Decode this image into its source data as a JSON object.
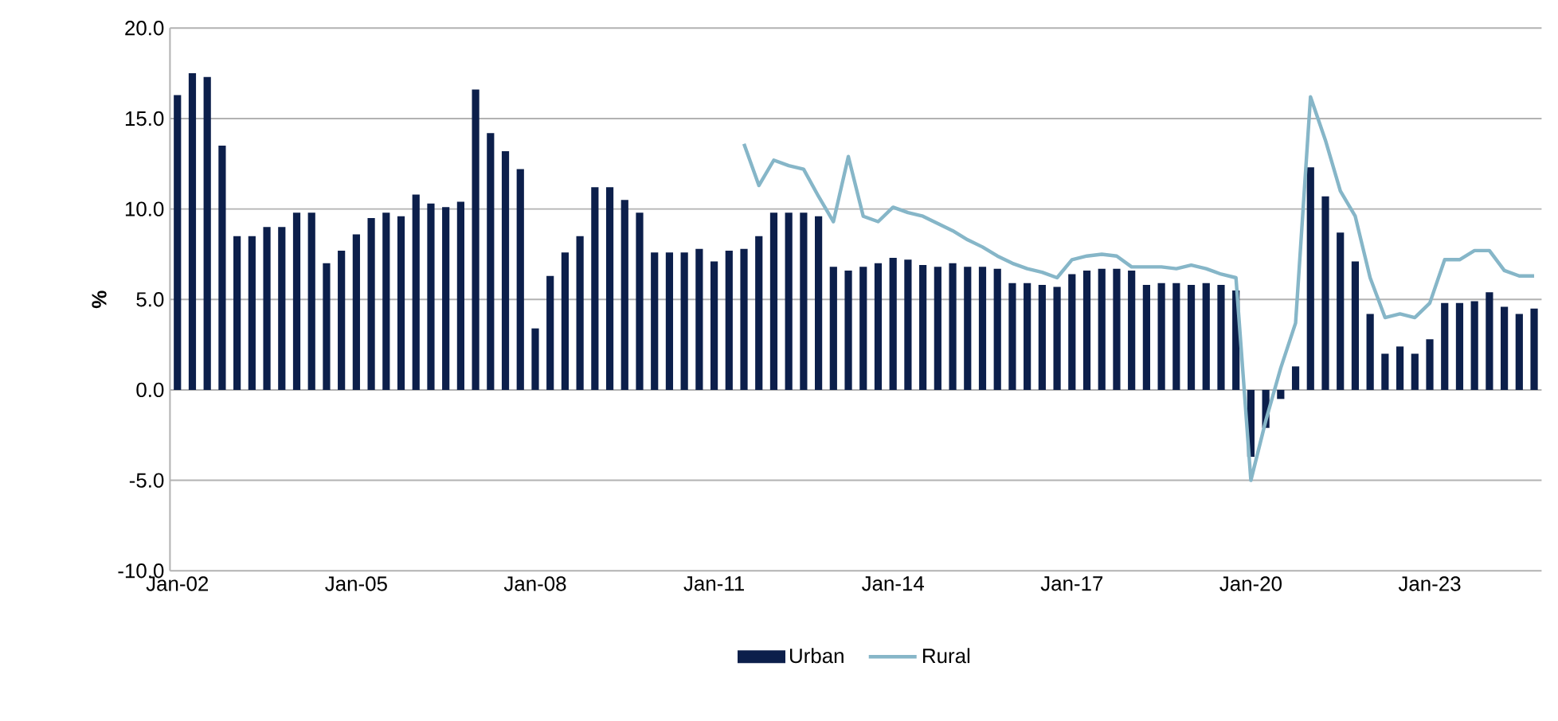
{
  "chart_data": {
    "type": "bar",
    "ylabel": "%",
    "categories": [
      "Jan-02",
      null,
      null,
      null,
      null,
      null,
      null,
      null,
      null,
      null,
      null,
      null,
      "Jan-05",
      null,
      null,
      null,
      null,
      null,
      null,
      null,
      null,
      null,
      null,
      null,
      "Jan-08",
      null,
      null,
      null,
      null,
      null,
      null,
      null,
      null,
      null,
      null,
      null,
      "Jan-11",
      null,
      null,
      null,
      null,
      null,
      null,
      null,
      null,
      null,
      null,
      null,
      "Jan-14",
      null,
      null,
      null,
      null,
      null,
      null,
      null,
      null,
      null,
      null,
      null,
      "Jan-17",
      null,
      null,
      null,
      null,
      null,
      null,
      null,
      null,
      null,
      null,
      null,
      "Jan-20",
      null,
      null,
      null,
      null,
      null,
      null,
      null,
      null,
      null,
      null,
      null,
      "Jan-23",
      null,
      null,
      null,
      null,
      null,
      null,
      null
    ],
    "series": [
      {
        "name": "Urban",
        "type": "bar",
        "color": "#0c1f4b",
        "values": [
          16.3,
          17.5,
          17.3,
          13.5,
          8.5,
          8.5,
          9.0,
          9.0,
          9.8,
          9.8,
          7.0,
          7.7,
          8.6,
          9.5,
          9.8,
          9.6,
          10.8,
          10.3,
          10.1,
          10.4,
          16.6,
          14.2,
          13.2,
          12.2,
          3.4,
          6.3,
          7.6,
          8.5,
          11.2,
          11.2,
          10.5,
          9.8,
          7.6,
          7.6,
          7.6,
          7.8,
          7.1,
          7.7,
          7.8,
          8.5,
          9.8,
          9.8,
          9.8,
          9.6,
          6.8,
          6.6,
          6.8,
          7.0,
          7.3,
          7.2,
          6.9,
          6.8,
          7.0,
          6.8,
          6.8,
          6.7,
          5.9,
          5.9,
          5.8,
          5.7,
          6.4,
          6.6,
          6.7,
          6.7,
          6.6,
          5.8,
          5.9,
          5.9,
          5.8,
          5.9,
          5.8,
          5.5,
          -3.7,
          -2.1,
          -0.5,
          1.3,
          12.3,
          10.7,
          8.7,
          7.1,
          4.2,
          2.0,
          2.4,
          2.0,
          2.8,
          4.8,
          4.8,
          4.9,
          5.4,
          4.6,
          4.2,
          4.5
        ]
      },
      {
        "name": "Rural",
        "type": "line",
        "color": "#86b6c8",
        "values": [
          null,
          null,
          null,
          null,
          null,
          null,
          null,
          null,
          null,
          null,
          null,
          null,
          null,
          null,
          null,
          null,
          null,
          null,
          null,
          null,
          null,
          null,
          null,
          null,
          null,
          null,
          null,
          null,
          null,
          null,
          null,
          null,
          null,
          null,
          null,
          null,
          null,
          null,
          13.6,
          11.3,
          12.7,
          12.4,
          12.2,
          10.7,
          9.3,
          12.9,
          9.6,
          9.3,
          10.1,
          9.8,
          9.6,
          9.2,
          8.8,
          8.3,
          7.9,
          7.4,
          7.0,
          6.7,
          6.5,
          6.2,
          7.2,
          7.4,
          7.5,
          7.4,
          6.8,
          6.8,
          6.8,
          6.7,
          6.9,
          6.7,
          6.4,
          6.2,
          -5.0,
          -1.7,
          1.2,
          3.7,
          16.2,
          13.8,
          11.0,
          9.6,
          6.2,
          4.0,
          4.2,
          4.0,
          4.8,
          7.2,
          7.2,
          7.7,
          7.7,
          6.6,
          6.3,
          6.3
        ]
      }
    ],
    "ylim": [
      -10,
      20
    ],
    "yticks": [
      {
        "value": -10,
        "label": "-10.0"
      },
      {
        "value": -5,
        "label": "-5.0"
      },
      {
        "value": 0,
        "label": "0.0"
      },
      {
        "value": 5,
        "label": "5.0"
      },
      {
        "value": 10,
        "label": "10.0"
      },
      {
        "value": 15,
        "label": "15.0"
      },
      {
        "value": 20,
        "label": "20.0"
      }
    ],
    "grid": "y",
    "legend": "bottom"
  }
}
